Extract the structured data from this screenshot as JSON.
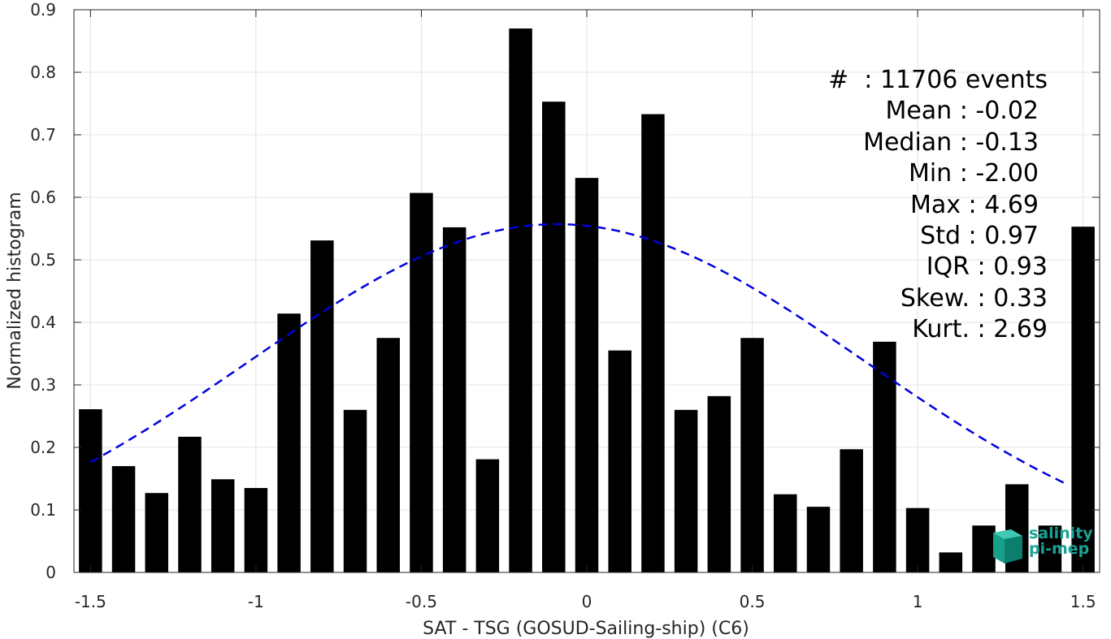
{
  "chart_data": {
    "type": "bar",
    "xlabel": "SAT - TSG (GOSUD-Sailing-ship) (C6)",
    "ylabel": "Normalized histogram",
    "xlim": [
      -1.55,
      1.55
    ],
    "ylim": [
      0,
      0.9
    ],
    "xticks": [
      -1.5,
      -1,
      -0.5,
      0,
      0.5,
      1,
      1.5
    ],
    "xtick_labels": [
      "-1.5",
      "-1",
      "-0.5",
      "0",
      "0.5",
      "1",
      "1.5"
    ],
    "yticks": [
      0,
      0.1,
      0.2,
      0.3,
      0.4,
      0.5,
      0.6,
      0.7,
      0.8,
      0.9
    ],
    "ytick_labels": [
      "0",
      "0.1",
      "0.2",
      "0.3",
      "0.4",
      "0.5",
      "0.6",
      "0.7",
      "0.8",
      "0.9"
    ],
    "grid": true,
    "bar_color": "#000000",
    "bar_width": 0.07,
    "x": [
      -1.5,
      -1.4,
      -1.3,
      -1.2,
      -1.1,
      -1.0,
      -0.9,
      -0.8,
      -0.7,
      -0.6,
      -0.5,
      -0.4,
      -0.3,
      -0.2,
      -0.1,
      0.0,
      0.1,
      0.2,
      0.3,
      0.4,
      0.5,
      0.6,
      0.7,
      0.8,
      0.9,
      1.0,
      1.1,
      1.2,
      1.3,
      1.4,
      1.5
    ],
    "values": [
      0.261,
      0.17,
      0.127,
      0.217,
      0.149,
      0.135,
      0.414,
      0.531,
      0.26,
      0.375,
      0.607,
      0.552,
      0.181,
      0.87,
      0.753,
      0.631,
      0.355,
      0.733,
      0.26,
      0.282,
      0.375,
      0.125,
      0.105,
      0.197,
      0.369,
      0.103,
      0.032,
      0.075,
      0.141,
      0.075,
      0.553
    ],
    "fit_curve": {
      "style": "dashed",
      "color": "#0000dd",
      "mean": -0.09,
      "std": 0.93,
      "peak": 0.557,
      "x_range": [
        -1.5,
        1.45
      ]
    }
  },
  "stats": {
    "count": "#  : 11706 events",
    "mean": "Mean : -0.02",
    "median": "Median : -0.13",
    "min": "Min : -2.00",
    "max": "Max : 4.69",
    "std": "Std : 0.97",
    "iqr": "IQR : 0.93",
    "skew": "Skew. : 0.33",
    "kurt": "Kurt. : 2.69"
  },
  "logo": {
    "line1": "salinity",
    "line2": "pi-mep",
    "color": "#1aa394"
  }
}
